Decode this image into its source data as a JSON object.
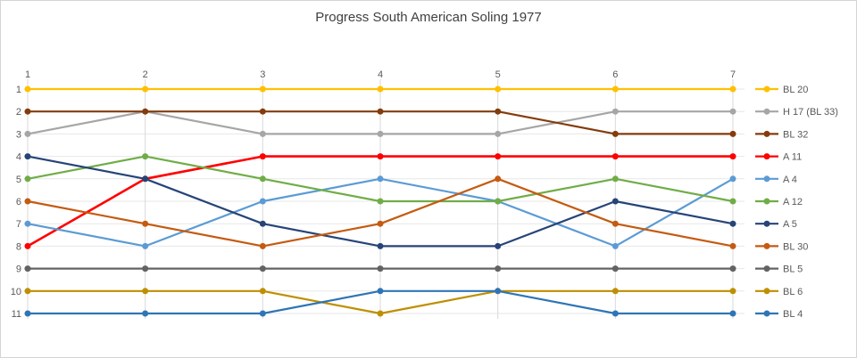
{
  "chart_data": {
    "type": "line",
    "subtype": "bump-chart",
    "title": "Progress South American Soling 1977",
    "x": [
      1,
      2,
      3,
      4,
      5,
      6,
      7
    ],
    "x_axis": {
      "position": "top",
      "labels": [
        "1",
        "2",
        "3",
        "4",
        "5",
        "6",
        "7"
      ]
    },
    "y_axis": {
      "position": "left",
      "labels": [
        "1",
        "2",
        "3",
        "4",
        "5",
        "6",
        "7",
        "8",
        "9",
        "10",
        "11"
      ],
      "range": [
        1,
        11
      ],
      "inverted": true
    },
    "grid": true,
    "legend_position": "right",
    "series": [
      {
        "name": "BL 20",
        "color": "#FFC000",
        "values": [
          1,
          1,
          1,
          1,
          1,
          1,
          1
        ]
      },
      {
        "name": "H 17 (BL 33)",
        "color": "#A6A6A6",
        "values": [
          3,
          2,
          3,
          3,
          3,
          2,
          2
        ]
      },
      {
        "name": "BL 32",
        "color": "#843C0C",
        "values": [
          2,
          2,
          2,
          2,
          2,
          3,
          3
        ]
      },
      {
        "name": "A 11",
        "color": "#FF0000",
        "values": [
          8,
          5,
          4,
          4,
          4,
          4,
          4
        ]
      },
      {
        "name": "A 4",
        "color": "#5B9BD5",
        "values": [
          7,
          8,
          6,
          5,
          6,
          8,
          5
        ]
      },
      {
        "name": "A 12",
        "color": "#70AD47",
        "values": [
          5,
          4,
          5,
          6,
          6,
          5,
          6
        ]
      },
      {
        "name": "A 5",
        "color": "#264478",
        "values": [
          4,
          5,
          7,
          8,
          8,
          6,
          7
        ]
      },
      {
        "name": "BL 30",
        "color": "#C55A11",
        "values": [
          6,
          7,
          8,
          7,
          5,
          7,
          8
        ]
      },
      {
        "name": "BL 5",
        "color": "#636363",
        "values": [
          9,
          9,
          9,
          9,
          9,
          9,
          9
        ]
      },
      {
        "name": "BL 6",
        "color": "#BF8F00",
        "values": [
          10,
          10,
          10,
          11,
          10,
          10,
          10
        ]
      },
      {
        "name": "BL 4",
        "color": "#2E75B6",
        "values": [
          11,
          11,
          11,
          10,
          10,
          11,
          11
        ]
      }
    ],
    "style": {
      "title_color": "#404040",
      "axis_text_color": "#595959",
      "legend_text_color": "#595959",
      "grid_vertical_color": "#D9D9D9",
      "grid_horizontal_color": "#E7E7E7",
      "background_color": "#FFFFFF",
      "frame_border_color": "#D4D4D4"
    }
  }
}
